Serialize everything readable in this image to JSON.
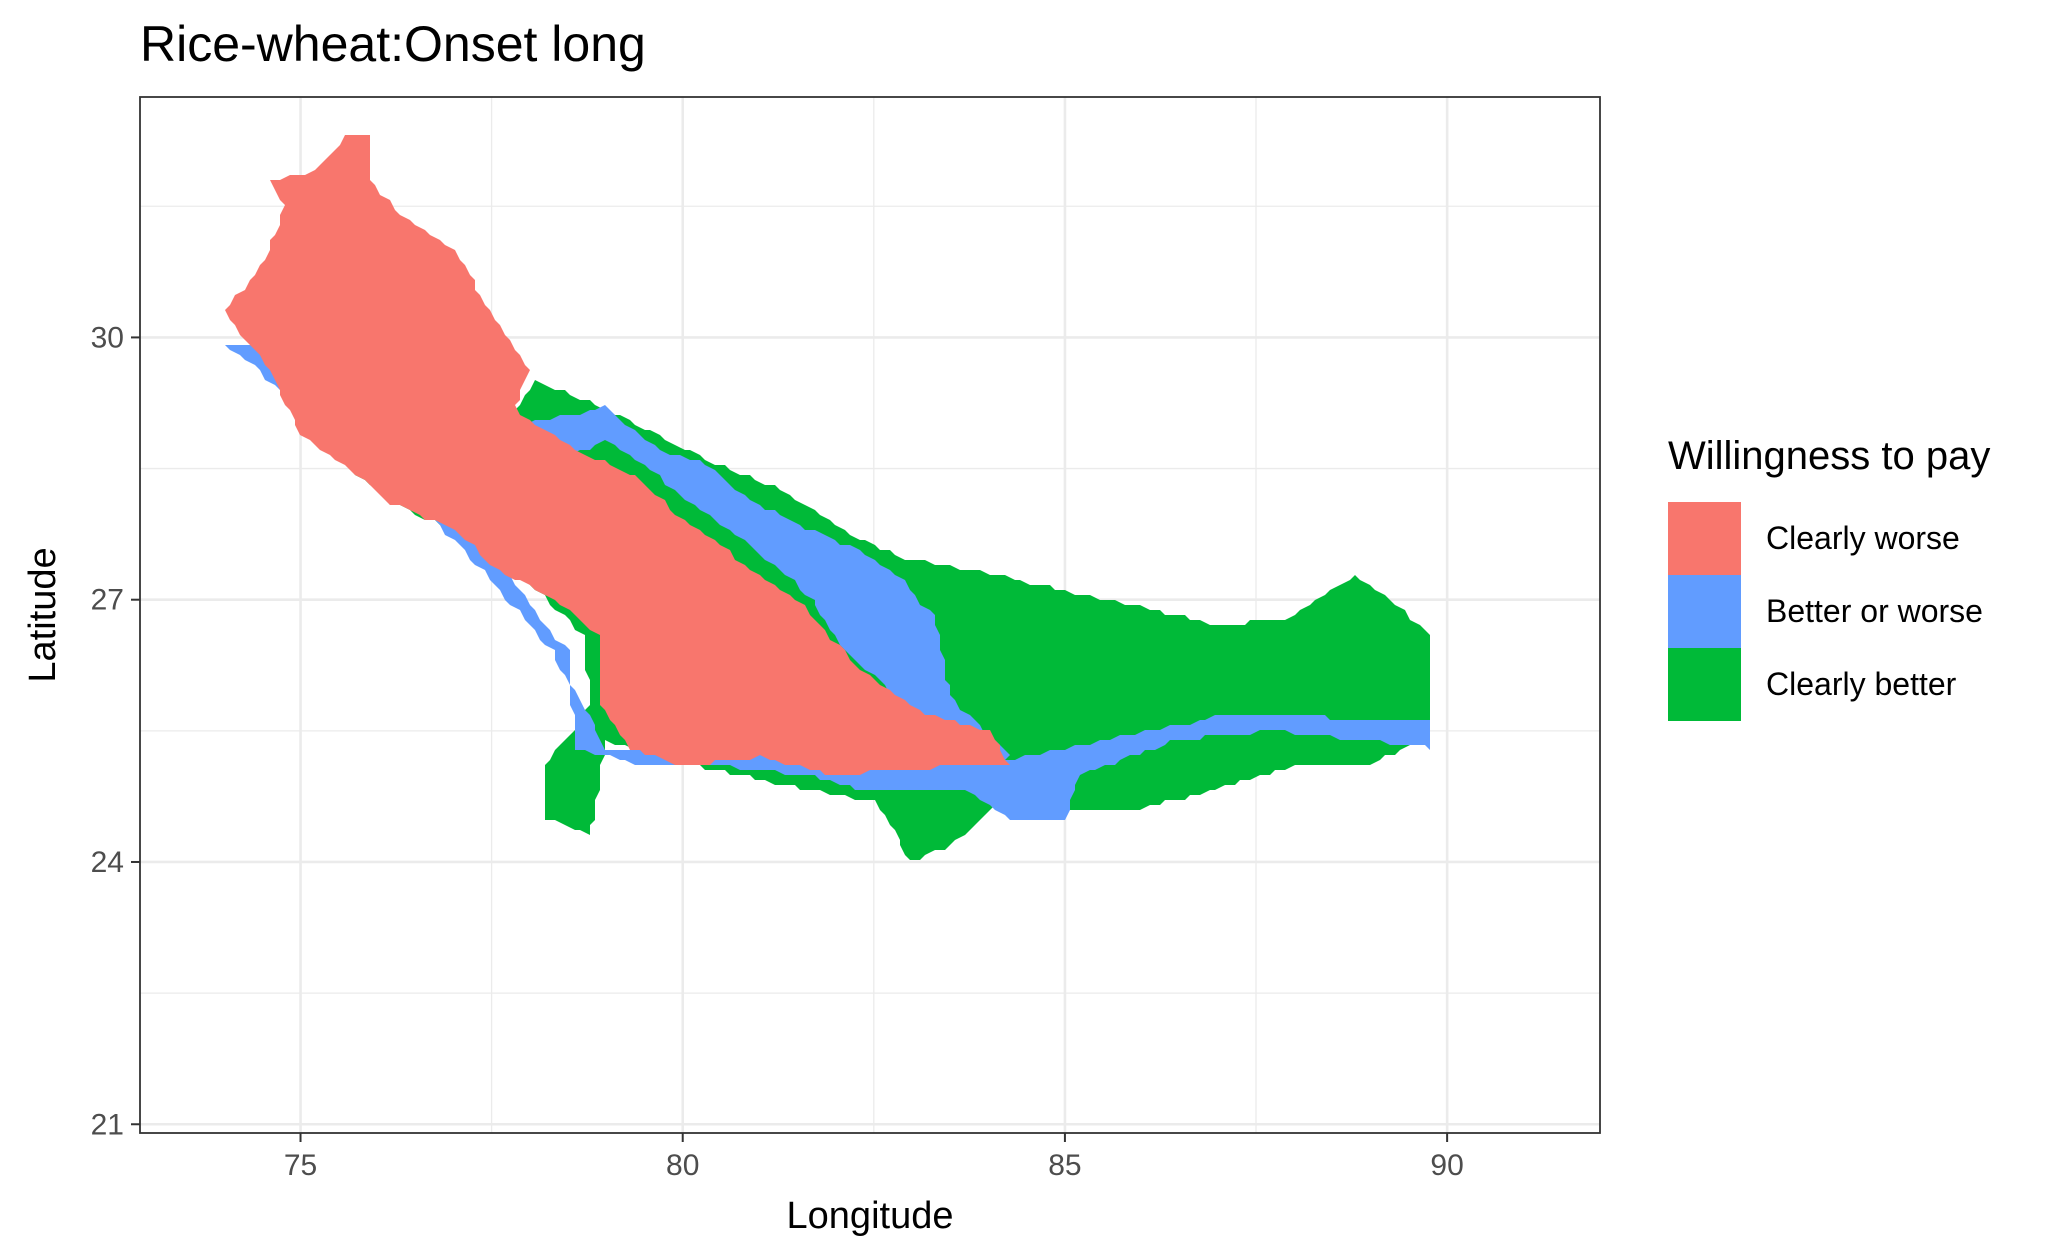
{
  "title": "Rice-wheat:Onset long",
  "chart_data": {
    "type": "map",
    "title": "Rice-wheat:Onset long",
    "xlabel": "Longitude",
    "ylabel": "Latitude",
    "xlim": [
      72.9,
      92.0
    ],
    "ylim": [
      20.9,
      32.75
    ],
    "x_ticks": [
      75,
      80,
      85,
      90
    ],
    "y_ticks": [
      21,
      24,
      27,
      30
    ],
    "x_tick_labels": [
      "75",
      "80",
      "85",
      "90"
    ],
    "y_tick_labels": [
      "21",
      "24",
      "27",
      "30"
    ],
    "grid": true,
    "legend": {
      "title": "Willingness to pay",
      "position": "right",
      "entries": [
        {
          "label": "Clearly worse",
          "color": "#F8766D"
        },
        {
          "label": "Better or worse",
          "color": "#619CFF"
        },
        {
          "label": "Clearly better",
          "color": "#00BA38"
        }
      ]
    },
    "regions": [
      {
        "category": "Clearly better",
        "color": "#00BA38",
        "outline": [
          [
            74.6,
            29.8
          ],
          [
            75.8,
            29.2
          ],
          [
            77.2,
            28.5
          ],
          [
            78.1,
            29.5
          ],
          [
            79.2,
            29.1
          ],
          [
            80.3,
            28.6
          ],
          [
            81.2,
            28.3
          ],
          [
            82.3,
            27.7
          ],
          [
            82.8,
            27.5
          ],
          [
            84.0,
            27.3
          ],
          [
            85.0,
            27.1
          ],
          [
            86.1,
            26.9
          ],
          [
            87.0,
            26.7
          ],
          [
            88.0,
            26.8
          ],
          [
            88.8,
            27.3
          ],
          [
            89.8,
            26.6
          ],
          [
            89.8,
            25.5
          ],
          [
            89.0,
            25.1
          ],
          [
            88.0,
            25.1
          ],
          [
            87.2,
            24.9
          ],
          [
            86.0,
            24.6
          ],
          [
            85.0,
            24.6
          ],
          [
            84.2,
            24.7
          ],
          [
            83.5,
            24.2
          ],
          [
            83.0,
            24.0
          ],
          [
            82.5,
            24.7
          ],
          [
            81.2,
            24.9
          ],
          [
            80.2,
            25.1
          ],
          [
            79.6,
            25.2
          ],
          [
            79.0,
            25.4
          ],
          [
            78.8,
            24.3
          ],
          [
            78.2,
            24.5
          ],
          [
            78.2,
            25.1
          ],
          [
            78.8,
            25.8
          ],
          [
            78.7,
            26.6
          ],
          [
            77.5,
            27.6
          ],
          [
            76.2,
            28.1
          ],
          [
            75.0,
            29.0
          ]
        ]
      },
      {
        "category": "Better or worse",
        "color": "#619CFF",
        "outline": [
          [
            74.0,
            29.9
          ],
          [
            74.9,
            29.9
          ],
          [
            76.8,
            28.9
          ],
          [
            77.5,
            27.5
          ],
          [
            78.5,
            26.4
          ],
          [
            78.6,
            25.3
          ],
          [
            79.5,
            25.1
          ],
          [
            80.5,
            25.1
          ],
          [
            81.6,
            25.0
          ],
          [
            82.5,
            24.8
          ],
          [
            83.7,
            24.8
          ],
          [
            84.3,
            24.5
          ],
          [
            85.0,
            24.5
          ],
          [
            85.2,
            25.0
          ],
          [
            86.5,
            25.4
          ],
          [
            87.8,
            25.5
          ],
          [
            88.8,
            25.4
          ],
          [
            89.8,
            25.3
          ],
          [
            89.8,
            25.6
          ],
          [
            87.2,
            25.7
          ],
          [
            85.0,
            25.3
          ],
          [
            83.9,
            25.1
          ],
          [
            83.0,
            25.2
          ],
          [
            81.5,
            25.3
          ],
          [
            80.0,
            25.2
          ],
          [
            79.0,
            25.3
          ],
          [
            78.3,
            26.4
          ],
          [
            77.0,
            27.7
          ],
          [
            75.3,
            29.0
          ],
          [
            74.2,
            29.8
          ]
        ]
      },
      {
        "category": "Better or worse",
        "color": "#619CFF",
        "outline": [
          [
            77.8,
            29.0
          ],
          [
            78.4,
            29.1
          ],
          [
            79.0,
            29.2
          ],
          [
            79.7,
            28.7
          ],
          [
            80.2,
            28.6
          ],
          [
            80.8,
            28.2
          ],
          [
            81.4,
            27.9
          ],
          [
            82.2,
            27.6
          ],
          [
            82.8,
            27.3
          ],
          [
            83.3,
            26.8
          ],
          [
            83.5,
            25.9
          ],
          [
            84.3,
            25.2
          ],
          [
            83.5,
            25.1
          ],
          [
            82.9,
            25.6
          ],
          [
            82.6,
            26.1
          ],
          [
            82.1,
            26.4
          ],
          [
            81.7,
            27.0
          ],
          [
            81.2,
            27.4
          ],
          [
            80.6,
            27.8
          ],
          [
            79.7,
            28.4
          ],
          [
            79.0,
            28.8
          ],
          [
            78.3,
            28.6
          ]
        ]
      },
      {
        "category": "Clearly worse",
        "color": "#F8766D",
        "outline": [
          [
            74.6,
            31.8
          ],
          [
            75.2,
            31.9
          ],
          [
            75.6,
            32.3
          ],
          [
            75.9,
            32.3
          ],
          [
            75.9,
            31.8
          ],
          [
            76.3,
            31.4
          ],
          [
            77.0,
            31.0
          ],
          [
            77.5,
            30.3
          ],
          [
            78.0,
            29.6
          ],
          [
            77.8,
            29.2
          ],
          [
            78.4,
            28.8
          ],
          [
            79.4,
            28.4
          ],
          [
            80.0,
            27.9
          ],
          [
            81.0,
            27.3
          ],
          [
            81.5,
            27.0
          ],
          [
            82.1,
            26.4
          ],
          [
            82.6,
            26.0
          ],
          [
            83.2,
            25.7
          ],
          [
            84.0,
            25.5
          ],
          [
            84.3,
            25.1
          ],
          [
            83.6,
            25.1
          ],
          [
            82.0,
            25.0
          ],
          [
            81.0,
            25.2
          ],
          [
            80.0,
            25.1
          ],
          [
            79.3,
            25.3
          ],
          [
            78.9,
            25.8
          ],
          [
            78.9,
            26.6
          ],
          [
            78.3,
            27.0
          ],
          [
            77.5,
            27.4
          ],
          [
            77.0,
            27.8
          ],
          [
            76.2,
            28.1
          ],
          [
            75.0,
            28.9
          ],
          [
            74.6,
            29.6
          ],
          [
            74.0,
            30.3
          ],
          [
            74.5,
            30.8
          ],
          [
            74.8,
            31.5
          ]
        ]
      }
    ]
  }
}
